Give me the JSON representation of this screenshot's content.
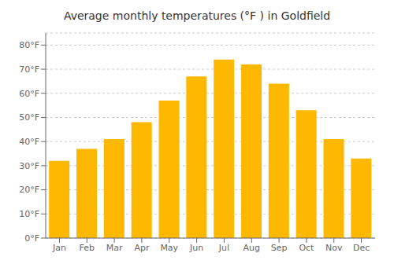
{
  "chart_data": {
    "type": "bar",
    "title": "Average monthly temperatures (°F ) in Goldfield",
    "categories": [
      "Jan",
      "Feb",
      "Mar",
      "Apr",
      "May",
      "Jun",
      "Jul",
      "Aug",
      "Sep",
      "Oct",
      "Nov",
      "Dec"
    ],
    "values": [
      32,
      37,
      41,
      48,
      57,
      67,
      74,
      72,
      64,
      53,
      41,
      33
    ],
    "color": "#FFB800",
    "ylim": [
      0,
      85
    ],
    "yticks": [
      {
        "value": 0,
        "label": "0°F"
      },
      {
        "value": 10,
        "label": "10°F"
      },
      {
        "value": 20,
        "label": "20°F"
      },
      {
        "value": 30,
        "label": "30°F"
      },
      {
        "value": 40,
        "label": "40°F"
      },
      {
        "value": 50,
        "label": "50°F"
      },
      {
        "value": 60,
        "label": "60°F"
      },
      {
        "value": 70,
        "label": "70°F"
      },
      {
        "value": 80,
        "label": "80°F"
      }
    ],
    "grid": true
  }
}
